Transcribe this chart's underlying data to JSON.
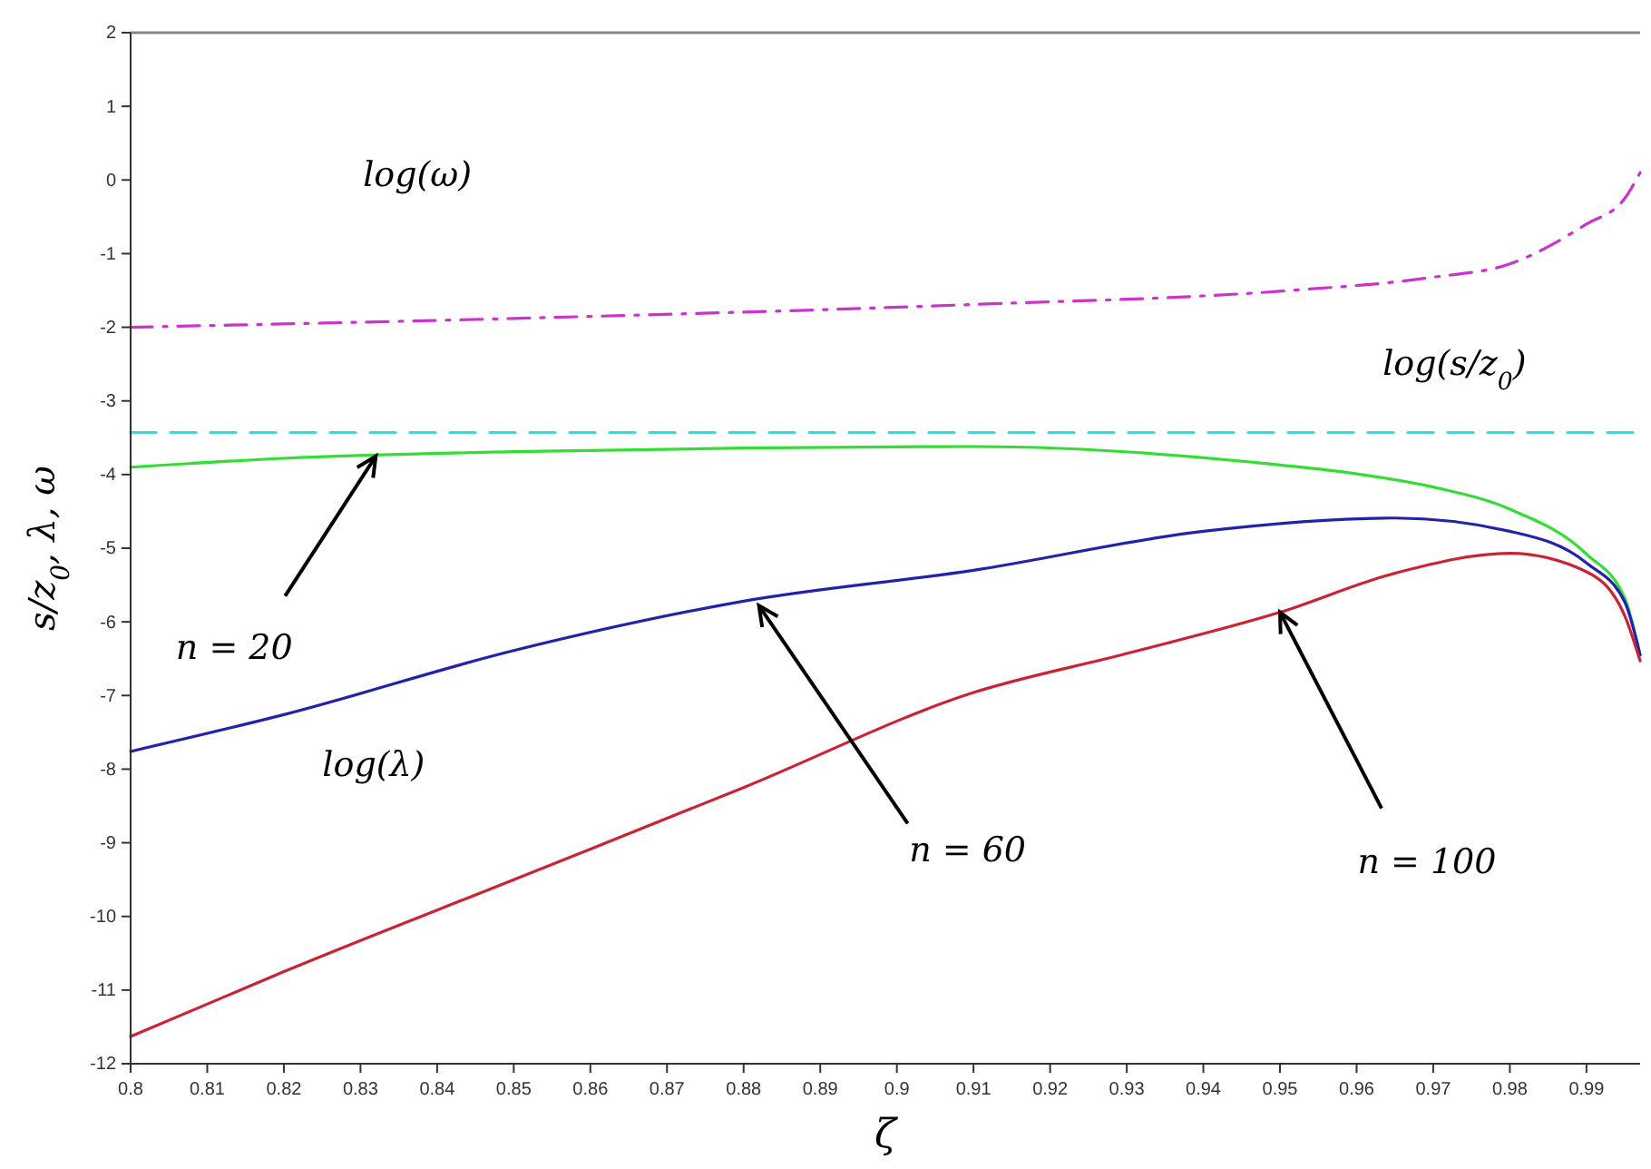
{
  "chart_data": {
    "type": "line",
    "xlabel": "ζ",
    "ylabel": "s/z$_{0}$, λ, ω",
    "xlim": [
      0.8,
      0.997
    ],
    "xticks": [
      0.8,
      0.81,
      0.82,
      0.83,
      0.84,
      0.85,
      0.86,
      0.87,
      0.88,
      0.89,
      0.9,
      0.91,
      0.92,
      0.93,
      0.94,
      0.95,
      0.96,
      0.97,
      0.98,
      0.99
    ],
    "ylim": [
      -12,
      2
    ],
    "yticks": [
      -12,
      -11,
      -10,
      -9,
      -8,
      -7,
      -6,
      -5,
      -4,
      -3,
      -2,
      -1,
      0,
      1,
      2
    ],
    "grid": false,
    "marker": "none",
    "series": [
      {
        "color": "#cc33cc",
        "line_style": "dashdot",
        "x": [
          0.8,
          0.85,
          0.91,
          0.95,
          0.97,
          0.98,
          0.99,
          0.995,
          0.997
        ],
        "values": [
          -2.0,
          -1.88,
          -1.69,
          -1.51,
          -1.32,
          -1.14,
          -0.6,
          -0.25,
          0.1
        ]
      },
      {
        "color": "#33dddd",
        "line_style": "dashed",
        "x": [
          0.8,
          0.997
        ],
        "values": [
          -3.43,
          -3.43
        ]
      },
      {
        "color": "#33dd33",
        "line_style": "solid",
        "x": [
          0.8,
          0.82,
          0.85,
          0.88,
          0.91,
          0.95,
          0.96,
          0.97,
          0.98,
          0.99,
          0.995,
          0.997
        ],
        "values": [
          -3.9,
          -3.78,
          -3.69,
          -3.64,
          -3.62,
          -3.87,
          -3.99,
          -4.17,
          -4.47,
          -5.08,
          -5.68,
          -6.45
        ]
      },
      {
        "color": "#2222aa",
        "line_style": "solid",
        "x": [
          0.8,
          0.82,
          0.85,
          0.88,
          0.91,
          0.94,
          0.965,
          0.98,
          0.99,
          0.995,
          0.997
        ],
        "values": [
          -7.76,
          -7.26,
          -6.39,
          -5.72,
          -5.3,
          -4.77,
          -4.59,
          -4.77,
          -5.2,
          -5.73,
          -6.45
        ]
      },
      {
        "color": "#cc2233",
        "line_style": "solid",
        "x": [
          0.8,
          0.82,
          0.85,
          0.88,
          0.91,
          0.93,
          0.95,
          0.965,
          0.98,
          0.99,
          0.995,
          0.997
        ],
        "values": [
          -11.63,
          -10.75,
          -9.5,
          -8.25,
          -6.96,
          -6.43,
          -5.87,
          -5.34,
          -5.07,
          -5.32,
          -5.92,
          -6.53
        ]
      }
    ],
    "annotations": [
      "log(ω)",
      "log(s/z$_{0}$)",
      "log(λ)",
      {
        "text": "n = 20",
        "x": 0.832,
        "y": -3.75
      },
      {
        "text": "n = 60",
        "x": 0.882,
        "y": -5.78
      },
      {
        "text": "n = 100",
        "x": 0.95,
        "y": -5.87
      }
    ]
  }
}
